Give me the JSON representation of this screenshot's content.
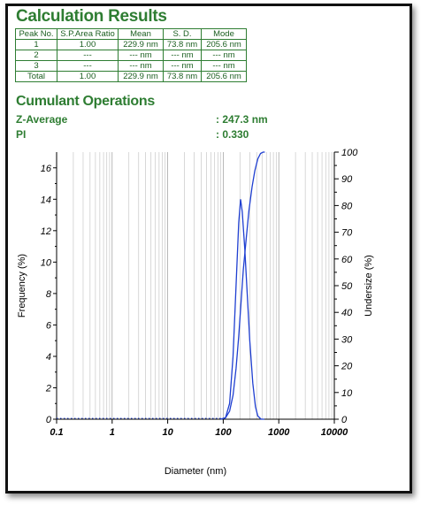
{
  "results": {
    "title": "Calculation Results",
    "headers": [
      "Peak No.",
      "S.P.Area Ratio",
      "Mean",
      "S. D.",
      "Mode"
    ],
    "rows": [
      [
        "1",
        "1.00",
        "229.9 nm",
        "73.8 nm",
        "205.6 nm"
      ],
      [
        "2",
        "---",
        "--- nm",
        "--- nm",
        "--- nm"
      ],
      [
        "3",
        "---",
        "--- nm",
        "--- nm",
        "--- nm"
      ],
      [
        "Total",
        "1.00",
        "229.9 nm",
        "73.8 nm",
        "205.6 nm"
      ]
    ]
  },
  "cumulant": {
    "title": "Cumulant Operations",
    "z_label": "Z-Average",
    "z_value": ": 247.3 nm",
    "pi_label": "PI",
    "pi_value": ": 0.330"
  },
  "colors": {
    "accent": "#2e7d32",
    "series": "#1f3fd1",
    "grid": "#c8c8c8"
  },
  "chart_data": {
    "type": "line",
    "xlabel": "Diameter (nm)",
    "ylabel": "Frequency (%)",
    "y2label": "Undersize (%)",
    "xscale": "log",
    "xlim": [
      0.1,
      10000
    ],
    "ylim": [
      0,
      17
    ],
    "y2lim": [
      0,
      100
    ],
    "xticks": [
      0.1,
      1,
      10,
      100,
      1000,
      10000
    ],
    "xtick_labels": [
      "0.1",
      "1",
      "10",
      "100",
      "1000",
      "10000"
    ],
    "yticks": [
      0,
      2,
      4,
      6,
      8,
      10,
      12,
      14,
      16
    ],
    "y2ticks": [
      0,
      10,
      20,
      30,
      40,
      50,
      60,
      70,
      80,
      90,
      100
    ],
    "grid": true,
    "series": [
      {
        "axis": "left",
        "x": [
          90,
          110,
          130,
          150,
          170,
          190,
          205,
          220,
          245,
          270,
          300,
          340,
          380,
          420,
          480,
          550
        ],
        "y": [
          0,
          0.1,
          1.0,
          4.0,
          8.5,
          12.5,
          14.0,
          13.2,
          10.8,
          8.0,
          5.0,
          2.3,
          0.8,
          0.2,
          0,
          0
        ]
      },
      {
        "axis": "right",
        "x": [
          90,
          110,
          130,
          150,
          170,
          190,
          210,
          230,
          260,
          290,
          330,
          370,
          420,
          470,
          520,
          560
        ],
        "y": [
          0,
          0.5,
          3,
          9,
          19,
          31,
          44,
          56,
          68,
          78,
          87,
          93,
          97.5,
          99.5,
          100,
          100
        ]
      }
    ]
  }
}
